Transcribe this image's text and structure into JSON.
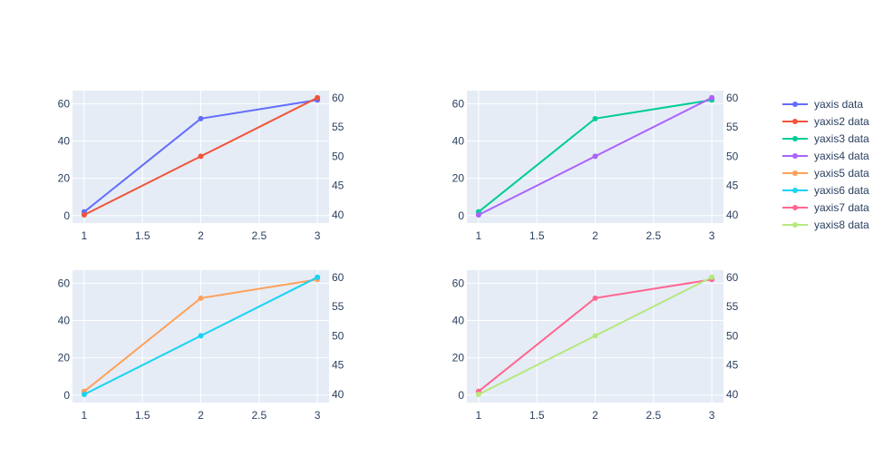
{
  "chart_data": [
    {
      "type": "line",
      "subplot": "top-left",
      "x": [
        1,
        2,
        3
      ],
      "xticks": [
        "1",
        "1.5",
        "2",
        "2.5",
        "3"
      ],
      "xlim": [
        0.9,
        3.1
      ],
      "y_left": {
        "lim": [
          -4,
          67
        ],
        "ticks": [
          0,
          20,
          40,
          60
        ]
      },
      "y_right": {
        "lim": [
          38.6,
          61.2
        ],
        "ticks": [
          40,
          45,
          50,
          55,
          60
        ]
      },
      "series": [
        {
          "name": "yaxis data",
          "values": [
            2,
            52,
            62
          ],
          "axis": "left",
          "color": "#636efa"
        },
        {
          "name": "yaxis2 data",
          "values": [
            40,
            50,
            60
          ],
          "axis": "right",
          "color": "#ef553b"
        }
      ],
      "grid": true
    },
    {
      "type": "line",
      "subplot": "top-right",
      "x": [
        1,
        2,
        3
      ],
      "xticks": [
        "1",
        "1.5",
        "2",
        "2.5",
        "3"
      ],
      "xlim": [
        0.9,
        3.1
      ],
      "y_left": {
        "lim": [
          -4,
          67
        ],
        "ticks": [
          0,
          20,
          40,
          60
        ]
      },
      "y_right": {
        "lim": [
          38.6,
          61.2
        ],
        "ticks": [
          40,
          45,
          50,
          55,
          60
        ]
      },
      "series": [
        {
          "name": "yaxis3 data",
          "values": [
            2,
            52,
            62
          ],
          "axis": "left",
          "color": "#00cc96"
        },
        {
          "name": "yaxis4 data",
          "values": [
            40,
            50,
            60
          ],
          "axis": "right",
          "color": "#ab63fa"
        }
      ],
      "grid": true
    },
    {
      "type": "line",
      "subplot": "bottom-left",
      "x": [
        1,
        2,
        3
      ],
      "xticks": [
        "1",
        "1.5",
        "2",
        "2.5",
        "3"
      ],
      "xlim": [
        0.9,
        3.1
      ],
      "y_left": {
        "lim": [
          -4,
          67
        ],
        "ticks": [
          0,
          20,
          40,
          60
        ]
      },
      "y_right": {
        "lim": [
          38.6,
          61.2
        ],
        "ticks": [
          40,
          45,
          50,
          55,
          60
        ]
      },
      "series": [
        {
          "name": "yaxis5 data",
          "values": [
            2,
            52,
            62
          ],
          "axis": "left",
          "color": "#ffa15a"
        },
        {
          "name": "yaxis6 data",
          "values": [
            40,
            50,
            60
          ],
          "axis": "right",
          "color": "#19d3f3"
        }
      ],
      "grid": true
    },
    {
      "type": "line",
      "subplot": "bottom-right",
      "x": [
        1,
        2,
        3
      ],
      "xticks": [
        "1",
        "1.5",
        "2",
        "2.5",
        "3"
      ],
      "xlim": [
        0.9,
        3.1
      ],
      "y_left": {
        "lim": [
          -4,
          67
        ],
        "ticks": [
          0,
          20,
          40,
          60
        ]
      },
      "y_right": {
        "lim": [
          38.6,
          61.2
        ],
        "ticks": [
          40,
          45,
          50,
          55,
          60
        ]
      },
      "series": [
        {
          "name": "yaxis7 data",
          "values": [
            2,
            52,
            62
          ],
          "axis": "left",
          "color": "#ff6692"
        },
        {
          "name": "yaxis8 data",
          "values": [
            40,
            50,
            60
          ],
          "axis": "right",
          "color": "#b6e880"
        }
      ],
      "grid": true
    }
  ],
  "legend": {
    "placement": "right",
    "items": [
      {
        "label": "yaxis data",
        "color": "#636efa"
      },
      {
        "label": "yaxis2 data",
        "color": "#ef553b"
      },
      {
        "label": "yaxis3 data",
        "color": "#00cc96"
      },
      {
        "label": "yaxis4 data",
        "color": "#ab63fa"
      },
      {
        "label": "yaxis5 data",
        "color": "#ffa15a"
      },
      {
        "label": "yaxis6 data",
        "color": "#19d3f3"
      },
      {
        "label": "yaxis7 data",
        "color": "#ff6692"
      },
      {
        "label": "yaxis8 data",
        "color": "#b6e880"
      }
    ]
  },
  "style": {
    "plot_bg": "#e5ecf6",
    "grid_color": "#ffffff",
    "text_color": "#2a3f5f"
  }
}
